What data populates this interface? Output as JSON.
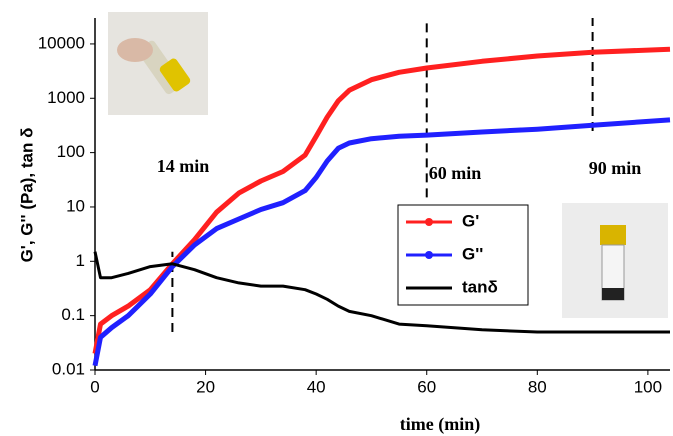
{
  "chart_data": {
    "type": "line",
    "xlabel": "time (min)",
    "ylabel": "G', G'' (Pa), tan δ",
    "x": [
      0,
      1,
      3,
      6,
      10,
      14,
      18,
      22,
      26,
      30,
      34,
      38,
      40,
      42,
      44,
      46,
      50,
      55,
      60,
      70,
      80,
      90,
      104
    ],
    "series": [
      {
        "name": "G'",
        "color": "#ff2020",
        "values": [
          0.02,
          0.07,
          0.1,
          0.15,
          0.3,
          0.9,
          2.5,
          8,
          18,
          30,
          45,
          90,
          200,
          450,
          900,
          1400,
          2200,
          3000,
          3600,
          4800,
          6000,
          7000,
          8000
        ]
      },
      {
        "name": "G''",
        "color": "#2020ff",
        "values": [
          0.012,
          0.04,
          0.06,
          0.1,
          0.25,
          0.8,
          2,
          4,
          6,
          9,
          12,
          20,
          35,
          70,
          120,
          150,
          180,
          200,
          210,
          240,
          270,
          320,
          400
        ]
      },
      {
        "name": "tanδ",
        "color": "#000000",
        "values": [
          1.5,
          0.5,
          0.5,
          0.6,
          0.8,
          0.9,
          0.7,
          0.5,
          0.4,
          0.35,
          0.35,
          0.3,
          0.25,
          0.2,
          0.15,
          0.12,
          0.1,
          0.07,
          0.065,
          0.055,
          0.05,
          0.05,
          0.05
        ]
      }
    ],
    "xlim": [
      0,
      104
    ],
    "xticks": [
      0,
      20,
      40,
      60,
      80,
      100
    ],
    "ylim": [
      0.01,
      30000
    ],
    "yticks": [
      0.01,
      0.1,
      1,
      10,
      100,
      1000,
      10000
    ],
    "ylog": true,
    "annotations": [
      {
        "x": 14,
        "label": "14 min"
      },
      {
        "x": 60,
        "label": "60 min"
      },
      {
        "x": 90,
        "label": "90 min"
      }
    ]
  }
}
